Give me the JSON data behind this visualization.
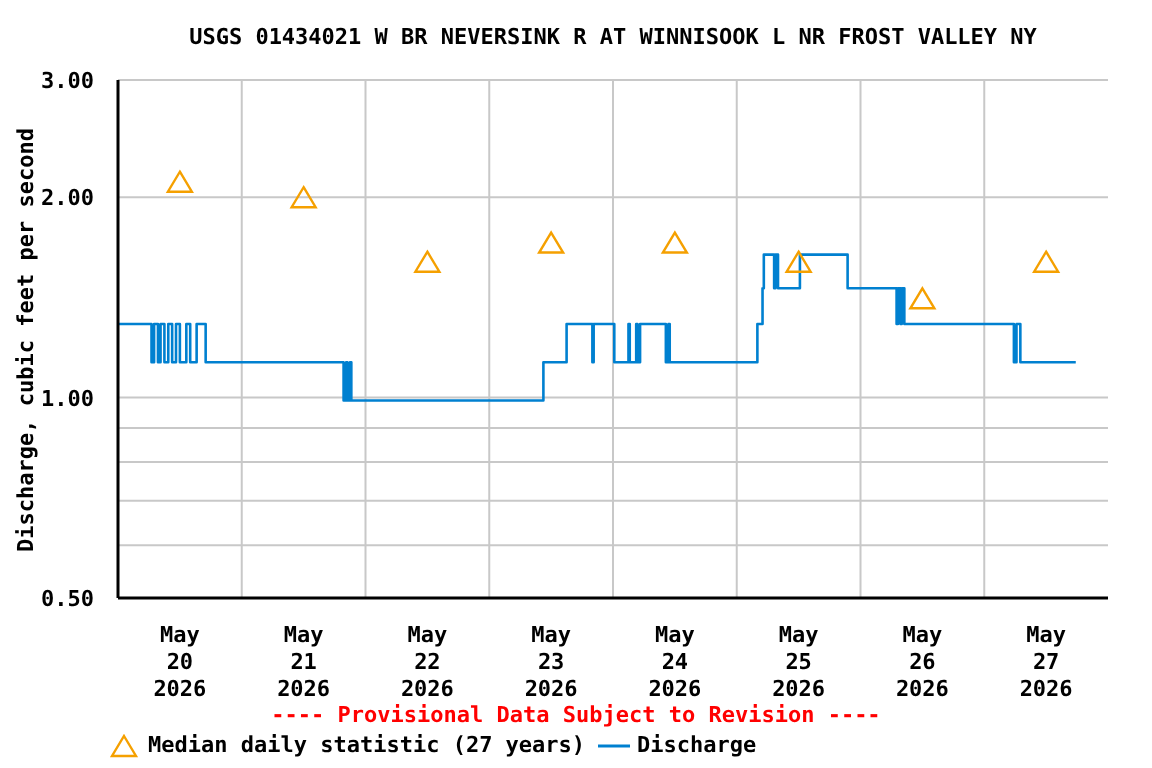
{
  "chart_data": {
    "type": "step",
    "title": "USGS 01434021 W BR NEVERSINK R AT WINNISOOK L NR FROST VALLEY NY",
    "ylabel": "Discharge, cubic feet per second",
    "annotations": [
      "---- Provisional Data Subject to Revision ----"
    ],
    "log": true,
    "grid": true,
    "legend": "bottom",
    "xlim": [
      "2026-05-20",
      "2026-05-28"
    ],
    "xticks": [
      {
        "value": "2026-05-20T12:00",
        "label": "May\n20\n2026"
      },
      {
        "value": "2026-05-21T12:00",
        "label": "May\n21\n2026"
      },
      {
        "value": "2026-05-22T12:00",
        "label": "May\n22\n2026"
      },
      {
        "value": "2026-05-23T12:00",
        "label": "May\n23\n2026"
      },
      {
        "value": "2026-05-24T12:00",
        "label": "May\n24\n2026"
      },
      {
        "value": "2026-05-25T12:00",
        "label": "May\n25\n2026"
      },
      {
        "value": "2026-05-26T12:00",
        "label": "May\n26\n2026"
      },
      {
        "value": "2026-05-27T12:00",
        "label": "May\n27\n2026"
      },
      {
        "value": "2026-05-21T00:00",
        "label": null
      },
      {
        "value": "2026-05-22T00:00",
        "label": null
      },
      {
        "value": "2026-05-23T00:00",
        "label": null
      },
      {
        "value": "2026-05-24T00:00",
        "label": null
      },
      {
        "value": "2026-05-25T00:00",
        "label": null
      },
      {
        "value": "2026-05-26T00:00",
        "label": null
      },
      {
        "value": "2026-05-27T00:00",
        "label": null
      }
    ],
    "ylim": [
      0.5,
      3
    ],
    "yticks": [
      {
        "value": 0.5,
        "label": "0.50"
      },
      {
        "value": 0.6,
        "label": null
      },
      {
        "value": 0.7,
        "label": null
      },
      {
        "value": 0.8,
        "label": null
      },
      {
        "value": 0.9,
        "label": null
      },
      {
        "value": 1,
        "label": "1.00"
      },
      {
        "value": 2,
        "label": "2.00"
      },
      {
        "value": 3,
        "label": "3.00"
      }
    ],
    "series": [
      {
        "name": "Median daily statistic (27 years)",
        "type": "scatter",
        "marker": "triangle",
        "color": "#f5a000",
        "x": [
          "2026-05-20T12:00",
          "2026-05-21T12:00",
          "2026-05-22T12:00",
          "2026-05-23T12:00",
          "2026-05-24T12:00",
          "2026-05-25T12:00",
          "2026-05-26T12:00",
          "2026-05-27T12:00"
        ],
        "values": [
          2.11,
          2.0,
          1.6,
          1.71,
          1.71,
          1.6,
          1.41,
          1.6
        ]
      },
      {
        "name": "Discharge",
        "color": "#0080d0",
        "x": [
          "2026-05-20T00:00",
          "2026-05-20T06:30",
          "2026-05-20T07:00",
          "2026-05-20T07:45",
          "2026-05-20T08:15",
          "2026-05-20T09:00",
          "2026-05-20T09:45",
          "2026-05-20T10:30",
          "2026-05-20T11:15",
          "2026-05-20T12:00",
          "2026-05-20T13:15",
          "2026-05-20T14:00",
          "2026-05-20T15:15",
          "2026-05-20T17:00",
          "2026-05-21T19:45",
          "2026-05-21T20:15",
          "2026-05-21T20:30",
          "2026-05-21T21:00",
          "2026-05-21T21:15",
          "2026-05-23T10:30",
          "2026-05-23T15:00",
          "2026-05-23T20:00",
          "2026-05-23T20:15",
          "2026-05-24T00:15",
          "2026-05-24T03:00",
          "2026-05-24T03:15",
          "2026-05-24T04:30",
          "2026-05-24T04:45",
          "2026-05-24T05:15",
          "2026-05-24T10:15",
          "2026-05-24T10:45",
          "2026-05-24T11:00",
          "2026-05-25T04:00",
          "2026-05-25T05:00",
          "2026-05-25T05:15",
          "2026-05-25T07:15",
          "2026-05-25T07:30",
          "2026-05-25T08:00",
          "2026-05-25T12:15",
          "2026-05-25T21:30",
          "2026-05-26T07:00",
          "2026-05-26T07:15",
          "2026-05-26T07:45",
          "2026-05-26T08:00",
          "2026-05-26T08:30",
          "2026-05-27T05:45",
          "2026-05-27T06:15",
          "2026-05-27T07:00",
          "2026-05-27T17:45"
        ],
        "values": [
          1.29,
          1.13,
          1.29,
          1.13,
          1.29,
          1.13,
          1.29,
          1.13,
          1.29,
          1.13,
          1.29,
          1.13,
          1.29,
          1.13,
          0.99,
          1.13,
          0.99,
          1.13,
          0.99,
          1.13,
          1.29,
          1.13,
          1.29,
          1.13,
          1.29,
          1.13,
          1.29,
          1.13,
          1.29,
          1.13,
          1.29,
          1.13,
          1.29,
          1.46,
          1.64,
          1.46,
          1.64,
          1.46,
          1.64,
          1.46,
          1.29,
          1.46,
          1.29,
          1.46,
          1.29,
          1.13,
          1.29,
          1.13,
          1.13
        ]
      }
    ]
  }
}
